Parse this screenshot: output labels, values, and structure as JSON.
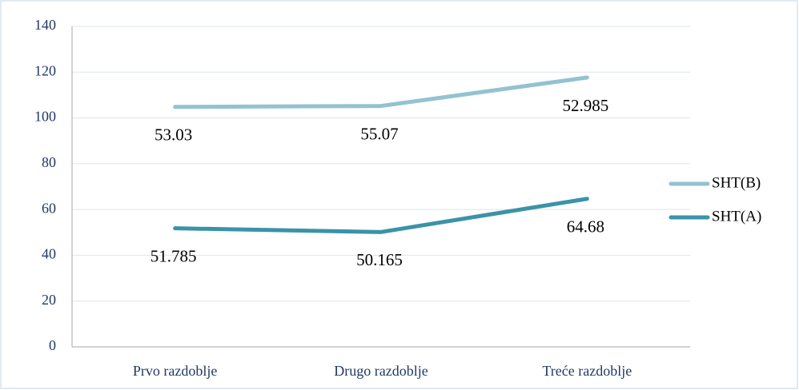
{
  "chart_data": {
    "type": "line",
    "stacked": true,
    "categories": [
      "Prvo razdoblje",
      "Drugo razdoblje",
      "Treće razdoblje"
    ],
    "series": [
      {
        "name": "SHT(A)",
        "color": "#3a93a8",
        "values": [
          51.785,
          50.165,
          64.68
        ]
      },
      {
        "name": "SHT(B)",
        "color": "#93c2d0",
        "values": [
          53.03,
          55.07,
          52.985
        ]
      }
    ],
    "ylim": [
      0,
      140
    ],
    "yticks": [
      0,
      20,
      40,
      60,
      80,
      100,
      120,
      140
    ],
    "grid": true,
    "legend": "right",
    "data_labels": true
  }
}
